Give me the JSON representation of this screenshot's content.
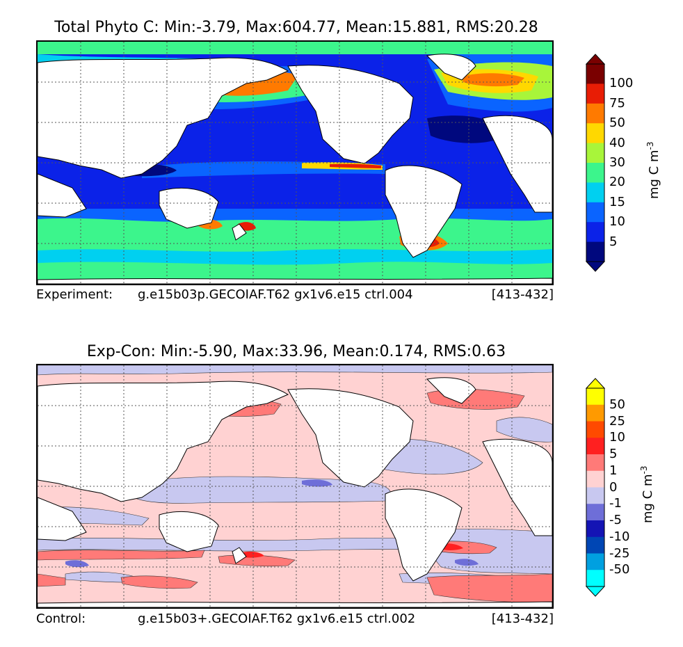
{
  "top_panel": {
    "title": "Total Phyto C: Min:-3.79, Max:604.77, Mean:15.881, RMS:20.28",
    "caption_label": "Experiment:",
    "caption_run": "g.e15b03p.GECOIAF.T62 gx1v6.e15 ctrl.004",
    "caption_range": "[413-432]",
    "units_base": "mg C m",
    "units_exp": "-3",
    "colorbar": {
      "ticks": [
        "100",
        "75",
        "50",
        "40",
        "30",
        "20",
        "15",
        "10",
        "5"
      ],
      "colors": [
        "#7a0000",
        "#e81d05",
        "#ff7a00",
        "#ffd800",
        "#a8f53a",
        "#3cf58c",
        "#00d0f0",
        "#0a64ff",
        "#0b22e8",
        "#00087e"
      ],
      "over_color": "#7a0000",
      "under_color": "#00087e"
    }
  },
  "bottom_panel": {
    "title": "Exp-Con: Min:-5.90, Max:33.96, Mean:0.174, RMS:0.63",
    "caption_label": "Control:",
    "caption_run": "g.e15b03+.GECOIAF.T62 gx1v6.e15 ctrl.002",
    "caption_range": "[413-432]",
    "units_base": "mg C m",
    "units_exp": "-3",
    "colorbar": {
      "ticks": [
        "50",
        "25",
        "10",
        "5",
        "1",
        "0",
        "-1",
        "-5",
        "-10",
        "-25",
        "-50"
      ],
      "colors": [
        "#ffff00",
        "#ff9a00",
        "#ff4a00",
        "#ff2020",
        "#ff7a78",
        "#ffd2d2",
        "#c8c8f0",
        "#6e6ed8",
        "#1414b4",
        "#0046b4",
        "#00a0e0",
        "#00ffff"
      ],
      "over_color": "#ffff00",
      "under_color": "#00ffff"
    }
  }
}
